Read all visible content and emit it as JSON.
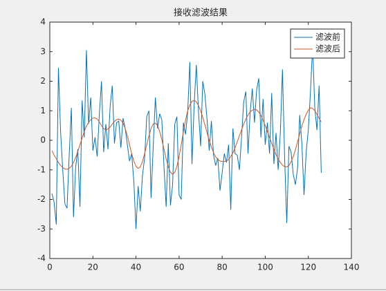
{
  "chart_data": {
    "type": "line",
    "title": "接收滤波结果",
    "x": [
      1,
      2,
      3,
      4,
      5,
      6,
      7,
      8,
      9,
      10,
      11,
      12,
      13,
      14,
      15,
      16,
      17,
      18,
      19,
      20,
      21,
      22,
      23,
      24,
      25,
      26,
      27,
      28,
      29,
      30,
      31,
      32,
      33,
      34,
      35,
      36,
      37,
      38,
      39,
      40,
      41,
      42,
      43,
      44,
      45,
      46,
      47,
      48,
      49,
      50,
      51,
      52,
      53,
      54,
      55,
      56,
      57,
      58,
      59,
      60,
      61,
      62,
      63,
      64,
      65,
      66,
      67,
      68,
      69,
      70,
      71,
      72,
      73,
      74,
      75,
      76,
      77,
      78,
      79,
      80,
      81,
      82,
      83,
      84,
      85,
      86,
      87,
      88,
      89,
      90,
      91,
      92,
      93,
      94,
      95,
      96,
      97,
      98,
      99,
      100,
      101,
      102,
      103,
      104,
      105,
      106,
      107,
      108,
      109,
      110,
      111,
      112,
      113,
      114,
      115,
      116,
      117,
      118,
      119,
      120,
      121,
      122,
      123,
      124,
      125,
      126
    ],
    "series": [
      {
        "name": "滤波前",
        "color": "#0072bd",
        "values": [
          -1.8,
          -2.1,
          -2.85,
          2.45,
          0.3,
          -1.0,
          -2.15,
          -2.3,
          -0.5,
          1.1,
          -2.6,
          -0.9,
          -0.3,
          -2.25,
          1.35,
          0.1,
          3.05,
          0.55,
          1.45,
          -0.35,
          0.1,
          -0.55,
          0.9,
          2.0,
          -0.4,
          0.55,
          -0.3,
          1.15,
          1.85,
          -0.1,
          0.6,
          0.65,
          -0.25,
          0.75,
          0.4,
          -0.15,
          -0.7,
          -0.45,
          -1.4,
          -3.0,
          -1.55,
          -2.4,
          -1.2,
          -0.6,
          0.8,
          1.0,
          -1.95,
          -0.2,
          1.45,
          0.4,
          0.9,
          0.7,
          -0.9,
          -2.25,
          -0.1,
          -2.2,
          -1.5,
          0.55,
          0.8,
          -1.85,
          -2.0,
          0.6,
          0.2,
          0.95,
          2.65,
          -0.8,
          1.2,
          2.55,
          1.0,
          -0.2,
          2.0,
          1.55,
          0.7,
          -0.35,
          0.65,
          -0.5,
          -0.85,
          -0.6,
          -1.7,
          -1.1,
          -0.45,
          -0.75,
          -0.15,
          -2.35,
          0.4,
          -0.45,
          -0.5,
          -1.0,
          0.1,
          1.3,
          1.65,
          -0.45,
          0.95,
          1.75,
          0.6,
          1.7,
          2.1,
          0.1,
          1.4,
          -0.15,
          0.6,
          -0.45,
          1.6,
          -0.8,
          0.25,
          -1.0,
          0.25,
          2.4,
          -0.6,
          -2.8,
          -0.2,
          -0.4,
          -1.15,
          -1.5,
          -0.95,
          0.85,
          -0.1,
          -1.85,
          -0.4,
          0.35,
          1.65,
          3.2,
          1.1,
          0.35,
          1.85,
          -1.1
        ]
      },
      {
        "name": "滤波后",
        "color": "#d95319",
        "values": [
          -0.35,
          -0.5,
          -0.62,
          -0.75,
          -0.85,
          -0.92,
          -0.97,
          -0.98,
          -0.95,
          -0.88,
          -0.75,
          -0.58,
          -0.38,
          -0.15,
          0.08,
          0.3,
          0.48,
          0.6,
          0.7,
          0.75,
          0.76,
          0.72,
          0.62,
          0.5,
          0.4,
          0.35,
          0.38,
          0.45,
          0.55,
          0.64,
          0.7,
          0.72,
          0.68,
          0.58,
          0.4,
          0.15,
          -0.15,
          -0.45,
          -0.7,
          -0.88,
          -0.95,
          -0.9,
          -0.72,
          -0.45,
          -0.15,
          0.15,
          0.4,
          0.55,
          0.58,
          0.5,
          0.3,
          0.02,
          -0.3,
          -0.62,
          -0.9,
          -1.08,
          -1.15,
          -1.08,
          -0.88,
          -0.55,
          -0.15,
          0.28,
          0.68,
          1.0,
          1.2,
          1.32,
          1.35,
          1.3,
          1.18,
          1.0,
          0.78,
          0.52,
          0.25,
          0.0,
          -0.22,
          -0.42,
          -0.56,
          -0.65,
          -0.7,
          -0.72,
          -0.72,
          -0.7,
          -0.65,
          -0.55,
          -0.42,
          -0.25,
          -0.05,
          0.15,
          0.35,
          0.55,
          0.72,
          0.86,
          0.96,
          1.02,
          1.05,
          1.03,
          0.96,
          0.84,
          0.68,
          0.5,
          0.3,
          0.1,
          -0.1,
          -0.3,
          -0.48,
          -0.63,
          -0.75,
          -0.84,
          -0.89,
          -0.9,
          -0.85,
          -0.73,
          -0.55,
          -0.32,
          -0.05,
          0.22,
          0.48,
          0.7,
          0.88,
          1.02,
          1.1,
          1.08,
          1.0,
          0.88,
          0.75,
          0.62
        ]
      }
    ],
    "xlim": [
      0,
      140
    ],
    "xticks": [
      0,
      20,
      40,
      60,
      80,
      100,
      120,
      140
    ],
    "ylim": [
      -4,
      4
    ],
    "yticks": [
      -4,
      -3,
      -2,
      -1,
      0,
      1,
      2,
      3,
      4
    ],
    "legend": "northeast"
  }
}
